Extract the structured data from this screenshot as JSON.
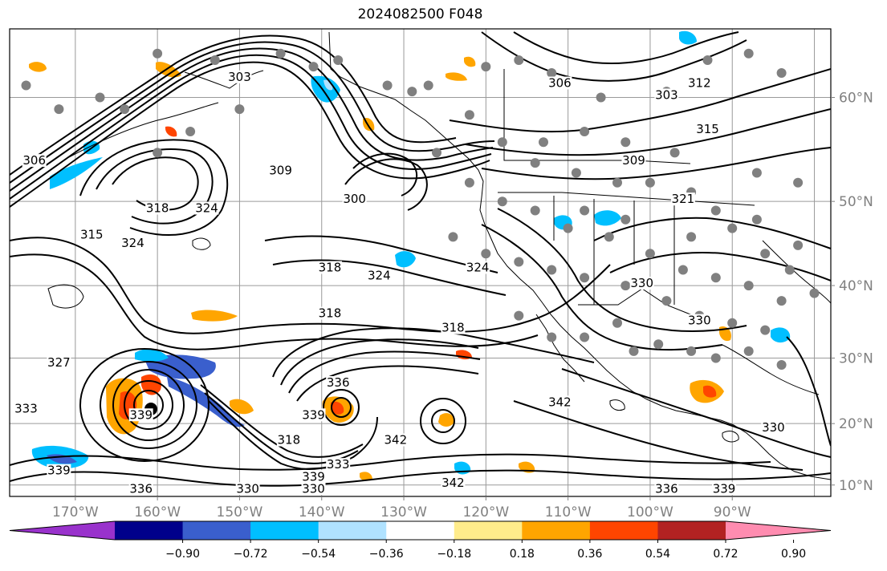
{
  "title": "2024082500 F048",
  "lat_labels": [
    {
      "text": "60°N",
      "lat": 60
    },
    {
      "text": "50°N",
      "lat": 50
    },
    {
      "text": "40°N",
      "lat": 40
    },
    {
      "text": "30°N",
      "lat": 30
    },
    {
      "text": "20°N",
      "lat": 20
    },
    {
      "text": "10°N",
      "lat": 10
    }
  ],
  "lon_labels": [
    {
      "text": "170°W",
      "lon": -170
    },
    {
      "text": "160°W",
      "lon": -160
    },
    {
      "text": "150°W",
      "lon": -150
    },
    {
      "text": "140°W",
      "lon": -140
    },
    {
      "text": "130°W",
      "lon": -130
    },
    {
      "text": "120°W",
      "lon": -120
    },
    {
      "text": "110°W",
      "lon": -110
    },
    {
      "text": "100°W",
      "lon": -100
    },
    {
      "text": "90°W",
      "lon": -90
    }
  ],
  "colorbar": {
    "ticks": [
      "−0.90",
      "−0.72",
      "−0.54",
      "−0.36",
      "−0.18",
      "0.18",
      "0.36",
      "0.54",
      "0.72",
      "0.90"
    ],
    "colors": [
      "#9932cc",
      "#00008b",
      "#3a5fcd",
      "#00bfff",
      "#b0e2ff",
      "#ffffff",
      "#ffec8b",
      "#ffa500",
      "#ff4500",
      "#b22222",
      "#ff8cb0"
    ]
  },
  "contour_labels": [
    {
      "text": "303",
      "lon": -150,
      "lat": 61.5
    },
    {
      "text": "306",
      "lon": -175,
      "lat": 54
    },
    {
      "text": "306",
      "lon": -111,
      "lat": 61
    },
    {
      "text": "303",
      "lon": -98,
      "lat": 60
    },
    {
      "text": "312",
      "lon": -94,
      "lat": 61
    },
    {
      "text": "315",
      "lon": -93,
      "lat": 57
    },
    {
      "text": "309",
      "lon": -145,
      "lat": 53
    },
    {
      "text": "300",
      "lon": -136,
      "lat": 50
    },
    {
      "text": "309",
      "lon": -102,
      "lat": 54
    },
    {
      "text": "321",
      "lon": -96,
      "lat": 50
    },
    {
      "text": "318",
      "lon": -160,
      "lat": 49
    },
    {
      "text": "324",
      "lon": -154,
      "lat": 49
    },
    {
      "text": "324",
      "lon": -163,
      "lat": 45
    },
    {
      "text": "315",
      "lon": -168,
      "lat": 46
    },
    {
      "text": "318",
      "lon": -139,
      "lat": 42
    },
    {
      "text": "324",
      "lon": -133,
      "lat": 41
    },
    {
      "text": "324",
      "lon": -121,
      "lat": 42
    },
    {
      "text": "318",
      "lon": -139,
      "lat": 36
    },
    {
      "text": "318",
      "lon": -124,
      "lat": 34
    },
    {
      "text": "330",
      "lon": -101,
      "lat": 40
    },
    {
      "text": "330",
      "lon": -94,
      "lat": 35
    },
    {
      "text": "327",
      "lon": -172,
      "lat": 29
    },
    {
      "text": "333",
      "lon": -176,
      "lat": 22
    },
    {
      "text": "336",
      "lon": -138,
      "lat": 26
    },
    {
      "text": "339",
      "lon": -141,
      "lat": 21
    },
    {
      "text": "342",
      "lon": -131,
      "lat": 17
    },
    {
      "text": "318",
      "lon": -144,
      "lat": 17
    },
    {
      "text": "339",
      "lon": -162,
      "lat": 21
    },
    {
      "text": "333",
      "lon": -138,
      "lat": 13
    },
    {
      "text": "339",
      "lon": -141,
      "lat": 11
    },
    {
      "text": "330",
      "lon": -141,
      "lat": 9
    },
    {
      "text": "330",
      "lon": -149,
      "lat": 9
    },
    {
      "text": "342",
      "lon": -124,
      "lat": 10
    },
    {
      "text": "336",
      "lon": -98,
      "lat": 9
    },
    {
      "text": "339",
      "lon": -91,
      "lat": 9
    },
    {
      "text": "339",
      "lon": -172,
      "lat": 12
    },
    {
      "text": "336",
      "lon": -162,
      "lat": 9
    },
    {
      "text": "330",
      "lon": -85,
      "lat": 19
    },
    {
      "text": "342",
      "lon": -111,
      "lat": 23
    }
  ]
}
